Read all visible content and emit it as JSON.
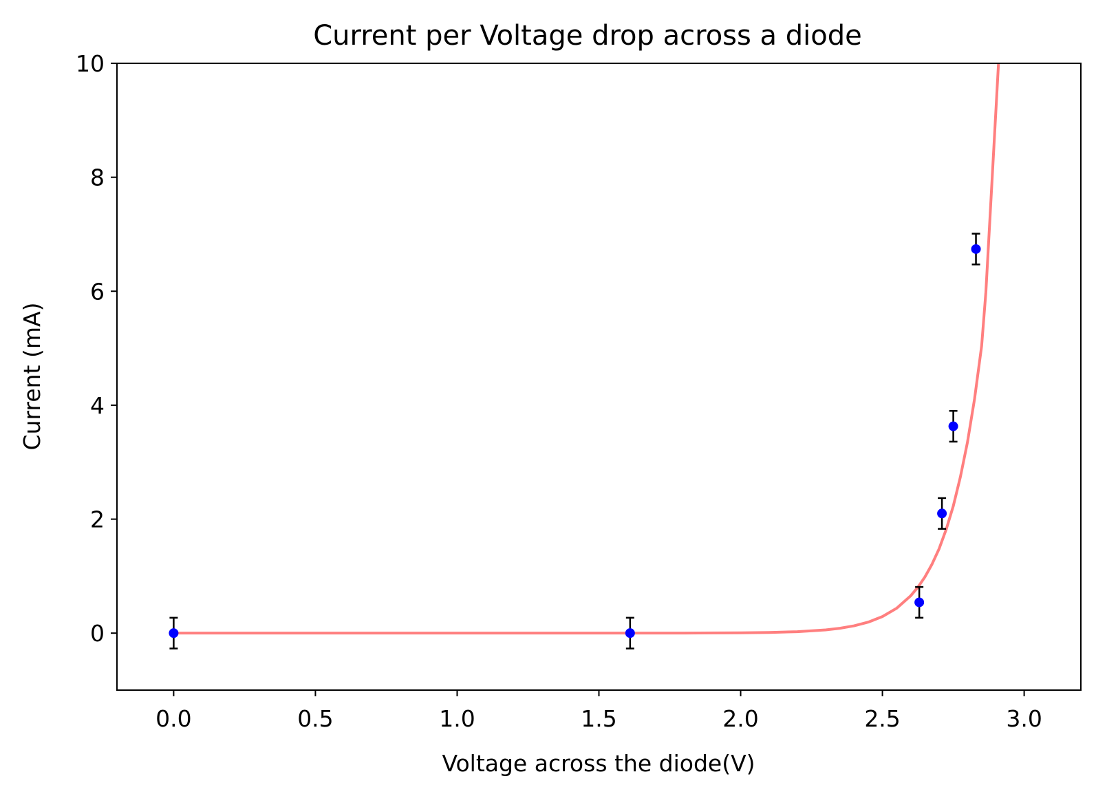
{
  "chart_data": {
    "type": "scatter",
    "title": "Current per Voltage drop across a diode",
    "xlabel": "Voltage across the diode(V)",
    "ylabel": "Current (mA)",
    "xlim": [
      -0.2,
      3.2
    ],
    "ylim": [
      -1,
      10
    ],
    "x_ticks": [
      0.0,
      0.5,
      1.0,
      1.5,
      2.0,
      2.5,
      3.0
    ],
    "x_tick_labels": [
      "0.0",
      "0.5",
      "1.0",
      "1.5",
      "2.0",
      "2.5",
      "3.0"
    ],
    "y_ticks": [
      0,
      2,
      4,
      6,
      8,
      10
    ],
    "y_tick_labels": [
      "0",
      "2",
      "4",
      "6",
      "8",
      "10"
    ],
    "grid": false,
    "legend": "none",
    "series": [
      {
        "kind": "scatter-with-errorbars",
        "color": "#0000ff",
        "errorbar_color": "#000000",
        "points": [
          {
            "x": 0.0,
            "y": 0.0,
            "yerr": 0.27
          },
          {
            "x": 1.61,
            "y": 0.0,
            "yerr": 0.27
          },
          {
            "x": 2.63,
            "y": 0.54,
            "yerr": 0.27
          },
          {
            "x": 2.71,
            "y": 2.1,
            "yerr": 0.27
          },
          {
            "x": 2.75,
            "y": 3.63,
            "yerr": 0.27
          },
          {
            "x": 2.83,
            "y": 6.74,
            "yerr": 0.27
          }
        ]
      },
      {
        "kind": "fit-curve",
        "color": "#ff0000",
        "opacity": 0.5,
        "x": [
          0.0,
          0.5,
          1.0,
          1.5,
          1.8,
          2.0,
          2.1,
          2.2,
          2.3,
          2.35,
          2.4,
          2.45,
          2.5,
          2.55,
          2.6,
          2.625,
          2.65,
          2.675,
          2.7,
          2.725,
          2.75,
          2.775,
          2.8,
          2.825,
          2.85,
          2.865
        ],
        "y": [
          0.0,
          0.0,
          0.0,
          0.0,
          0.001,
          0.005,
          0.011,
          0.025,
          0.056,
          0.085,
          0.128,
          0.193,
          0.29,
          0.436,
          0.656,
          0.804,
          0.986,
          1.21,
          1.48,
          1.82,
          2.23,
          2.74,
          3.35,
          4.11,
          5.04,
          5.99
        ]
      }
    ]
  }
}
